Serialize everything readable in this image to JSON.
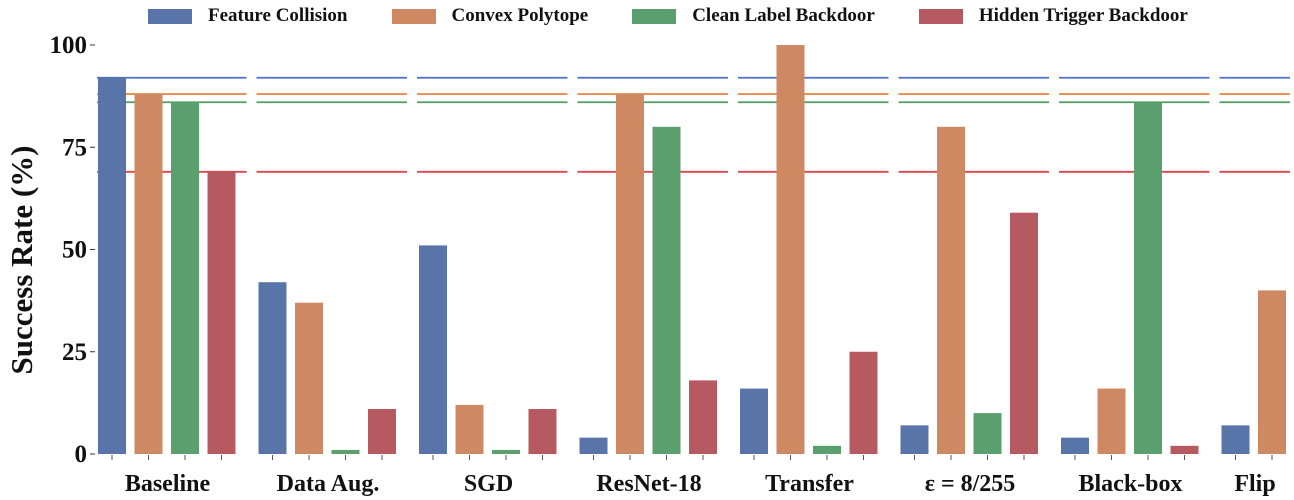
{
  "chart_data": {
    "type": "bar",
    "ylabel": "Success Rate (%)",
    "ylim": [
      0,
      100
    ],
    "yticks": [
      "0",
      "25",
      "50",
      "75",
      "100"
    ],
    "grid": false,
    "legend_position": "top",
    "categories": [
      "Baseline",
      "Data Aug.",
      "SGD",
      "ResNet-18",
      "Transfer",
      "ε = 8/255",
      "Black-box",
      "Flip"
    ],
    "series": [
      {
        "name": "Feature Collision",
        "color": "#5874a8",
        "values": [
          92,
          42,
          51,
          4,
          16,
          7,
          4,
          7
        ],
        "baseline": 92
      },
      {
        "name": "Convex Polytope",
        "color": "#cf8962",
        "values": [
          88,
          37,
          12,
          88,
          100,
          80,
          16,
          40
        ],
        "baseline": 88
      },
      {
        "name": "Clean Label Backdoor",
        "color": "#5b9f6e",
        "values": [
          86,
          1,
          1,
          80,
          2,
          10,
          86,
          null
        ],
        "baseline": 86
      },
      {
        "name": "Hidden Trigger Backdoor",
        "color": "#b75960",
        "values": [
          69,
          11,
          11,
          18,
          25,
          59,
          2,
          null
        ],
        "baseline": 69
      }
    ],
    "baseline_line_colors": [
      "#4a6fd0",
      "#e98a4f",
      "#4f9f5d",
      "#d9474c"
    ]
  }
}
